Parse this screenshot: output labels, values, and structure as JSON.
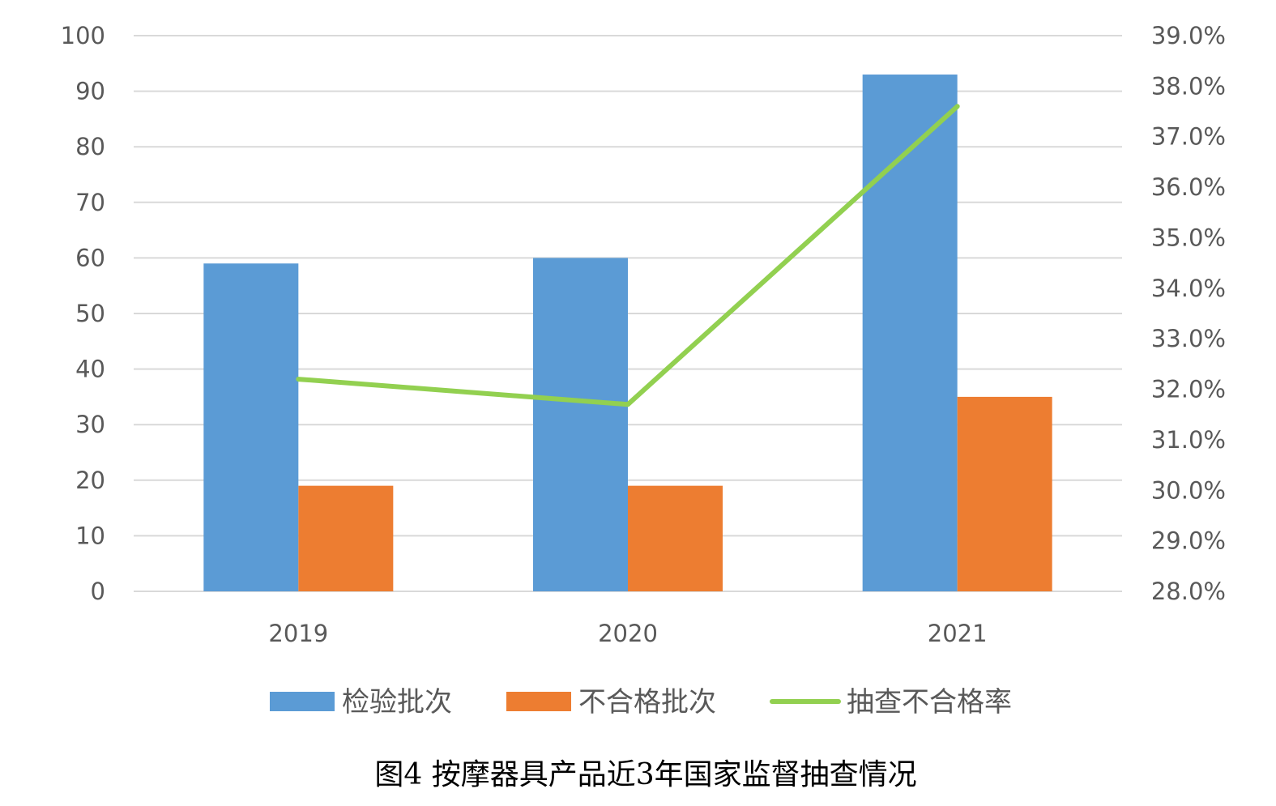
{
  "chart_data": {
    "type": "bar",
    "caption": "图4 按摩器具产品近3年国家监督抽查情况",
    "categories": [
      "2019",
      "2020",
      "2021"
    ],
    "series": [
      {
        "name": "检验批次",
        "type": "bar",
        "axis": "left",
        "color": "#5B9BD5",
        "values": [
          59,
          60,
          93
        ]
      },
      {
        "name": "不合格批次",
        "type": "bar",
        "axis": "left",
        "color": "#ED7D31",
        "values": [
          19,
          19,
          35
        ]
      },
      {
        "name": "抽查不合格率",
        "type": "line",
        "axis": "right",
        "color": "#92D050",
        "values": [
          32.2,
          31.7,
          37.6
        ]
      }
    ],
    "ylim": [
      0,
      100
    ],
    "y_ticks": [
      "0",
      "10",
      "20",
      "30",
      "40",
      "50",
      "60",
      "70",
      "80",
      "90",
      "100"
    ],
    "y2lim": [
      28.0,
      39.0
    ],
    "y2_ticks": [
      "28.0%",
      "29.0%",
      "30.0%",
      "31.0%",
      "32.0%",
      "33.0%",
      "34.0%",
      "35.0%",
      "36.0%",
      "37.0%",
      "38.0%",
      "39.0%"
    ],
    "grid": true,
    "legend_position": "bottom"
  }
}
